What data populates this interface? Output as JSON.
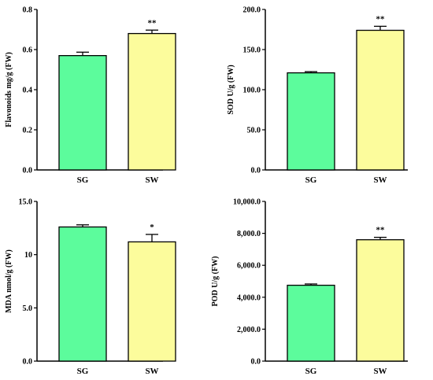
{
  "chart_data": [
    {
      "type": "bar",
      "categories": [
        "SG",
        "SW"
      ],
      "values": [
        0.57,
        0.68
      ],
      "errors": [
        0.017,
        0.017
      ],
      "significance": [
        "",
        "**"
      ],
      "ylabel": "Flavonoids mg/g (FW)",
      "ylim": [
        0,
        0.8
      ],
      "yticks": [
        "0.0",
        "0.2",
        "0.4",
        "0.6",
        "0.8"
      ],
      "ytick_values": [
        0,
        0.2,
        0.4,
        0.6,
        0.8
      ]
    },
    {
      "type": "bar",
      "categories": [
        "SG",
        "SW"
      ],
      "values": [
        121,
        174
      ],
      "errors": [
        1.5,
        5
      ],
      "significance": [
        "",
        "**"
      ],
      "ylabel": "SOD U/g (FW)",
      "ylim": [
        0,
        200
      ],
      "yticks": [
        "0.0",
        "50.0",
        "100.0",
        "150.0",
        "200.0"
      ],
      "ytick_values": [
        0,
        50,
        100,
        150,
        200
      ]
    },
    {
      "type": "bar",
      "categories": [
        "SG",
        "SW"
      ],
      "values": [
        12.6,
        11.2
      ],
      "errors": [
        0.2,
        0.7
      ],
      "significance": [
        "",
        "*"
      ],
      "ylabel": "MDA nmol/g (FW)",
      "ylim": [
        0,
        15
      ],
      "yticks": [
        "0.0",
        "5.0",
        "10",
        "15.0"
      ],
      "ytick_values": [
        0,
        5,
        10,
        15
      ]
    },
    {
      "type": "bar",
      "categories": [
        "SG",
        "SW"
      ],
      "values": [
        4750,
        7600
      ],
      "errors": [
        80,
        150
      ],
      "significance": [
        "",
        "**"
      ],
      "ylabel": "POD U/g (FW)",
      "ylim": [
        0,
        10000
      ],
      "yticks": [
        "0.0",
        "2,000.0",
        "4,000.0",
        "6,000.0",
        "8,000.0",
        "10,000.0"
      ],
      "ytick_values": [
        0,
        2000,
        4000,
        6000,
        8000,
        10000
      ]
    }
  ],
  "colors": {
    "SG": "#5cfc9c",
    "SW": "#fcfc9c",
    "axis": "#000000"
  }
}
